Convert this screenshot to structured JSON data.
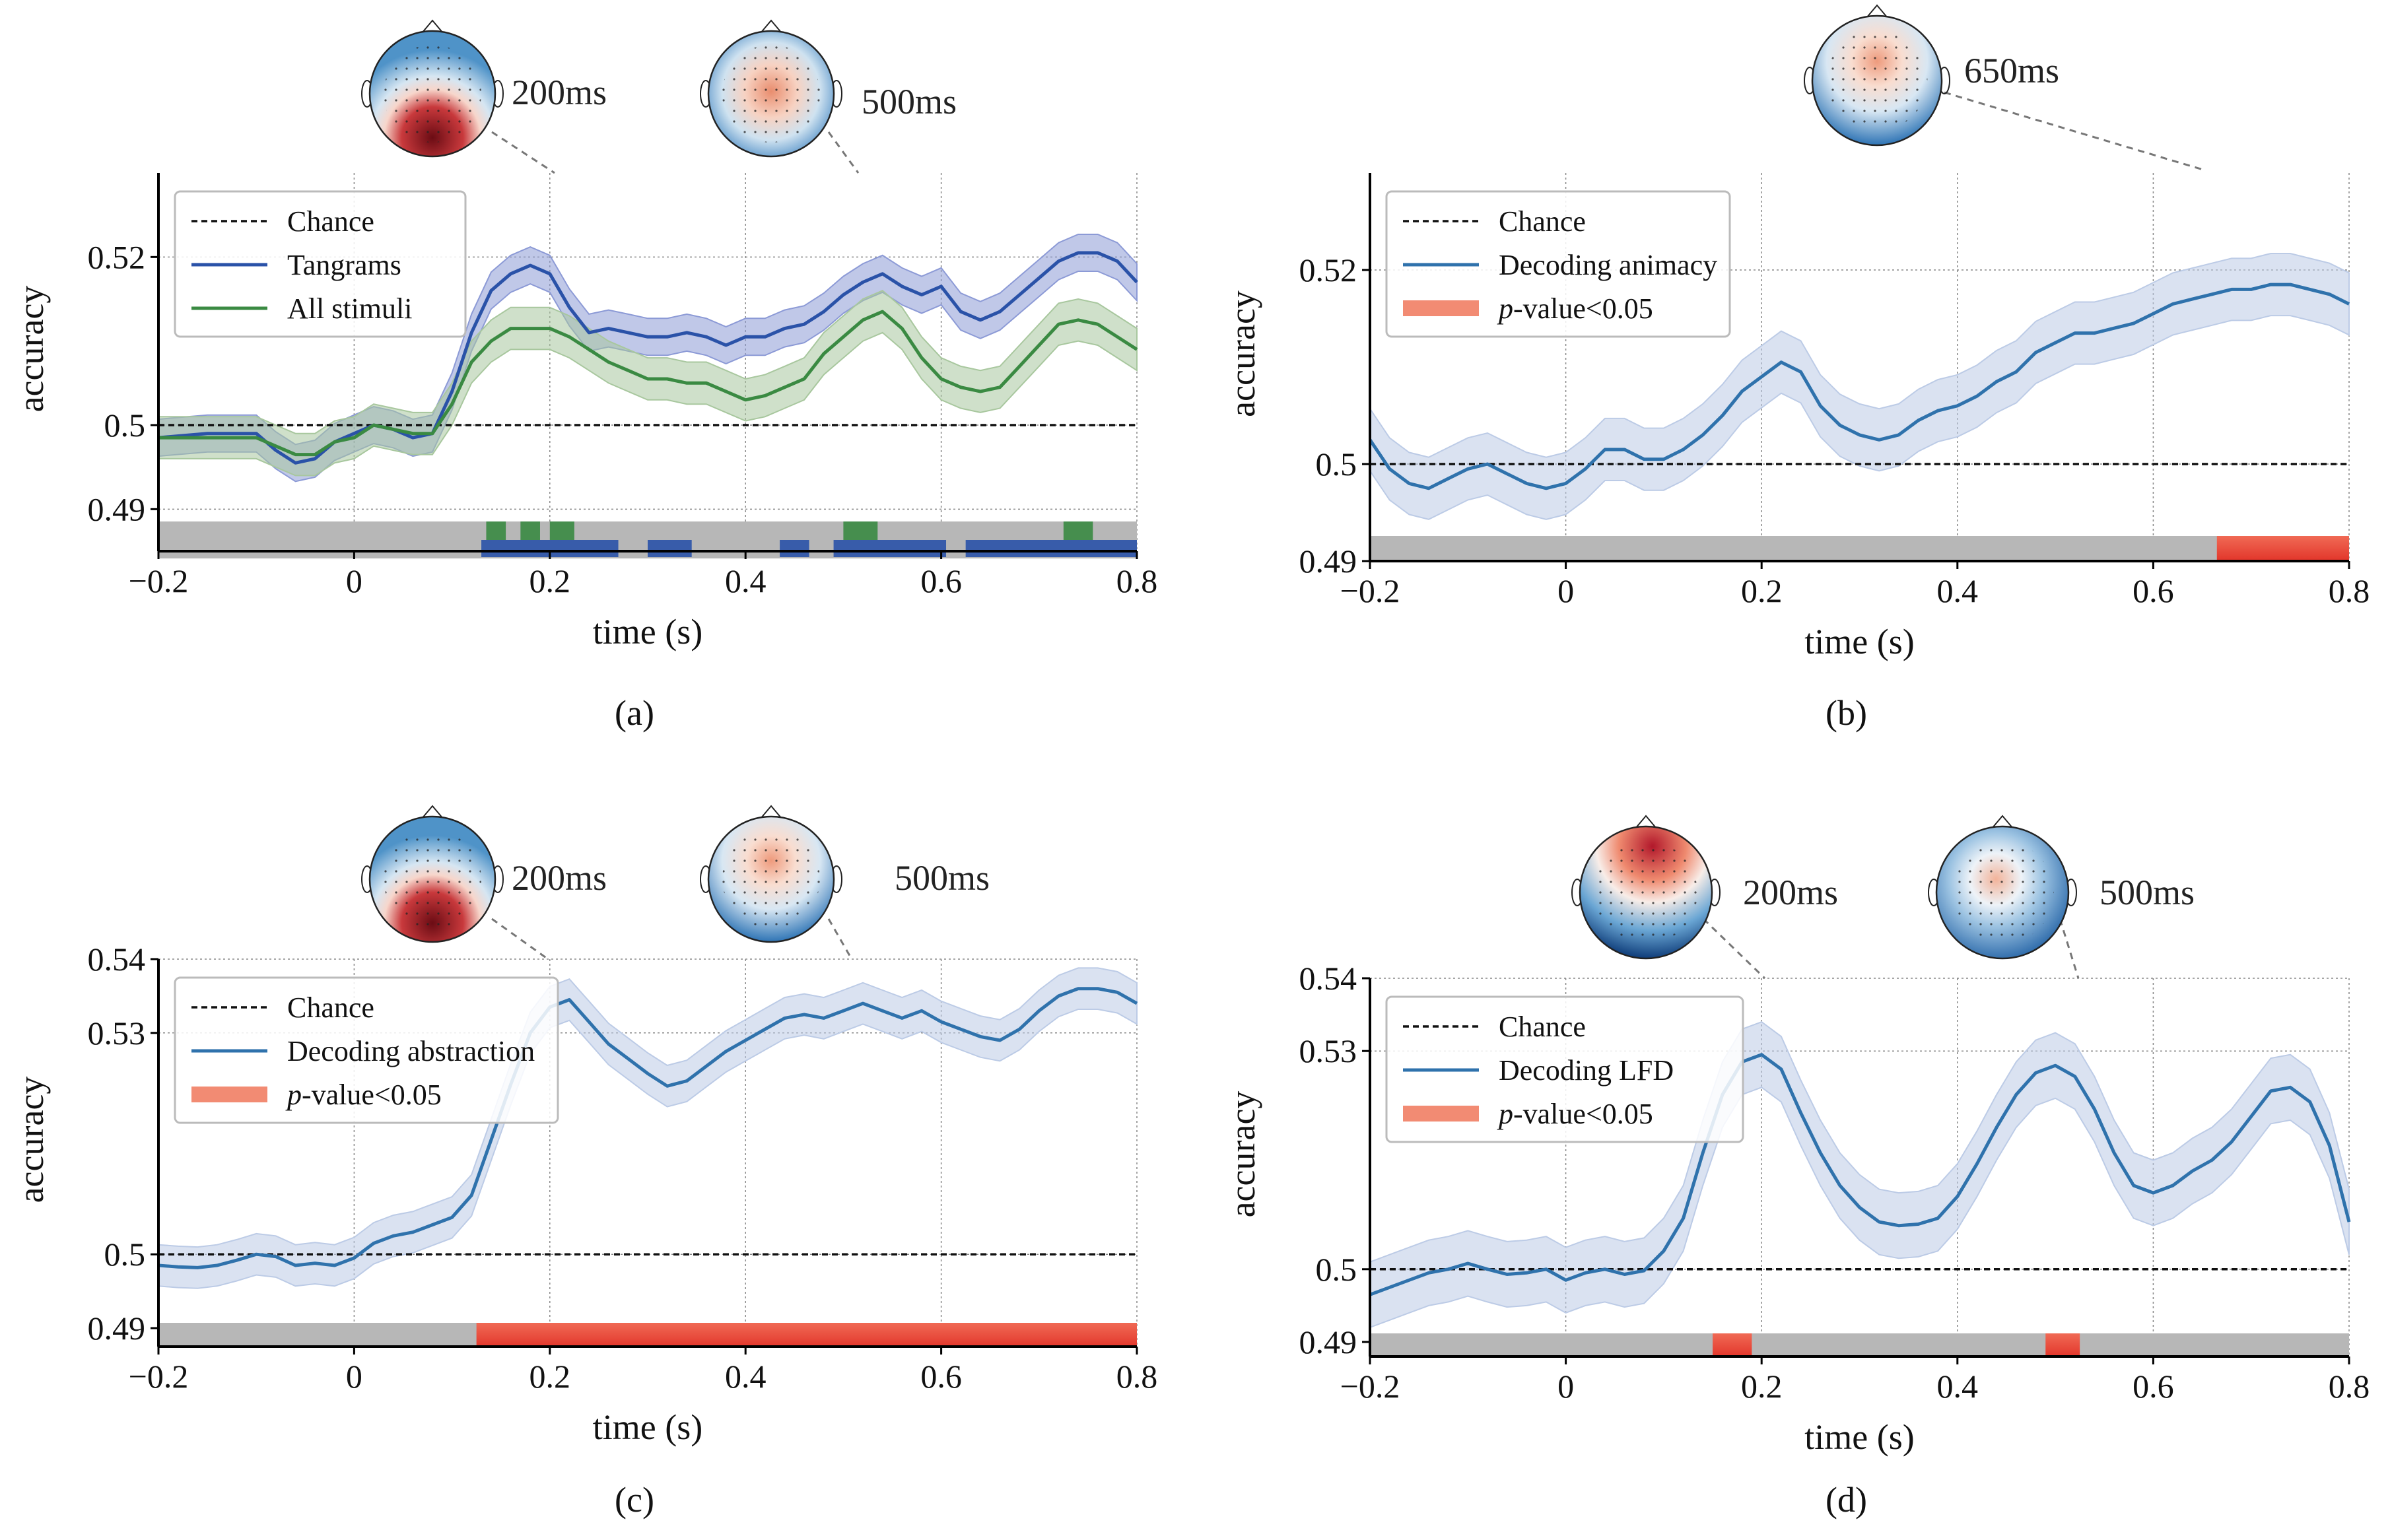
{
  "colors": {
    "tangrams": "#2a52a8",
    "tangrams_fill": "#8c9ad6",
    "allstim": "#3a8a42",
    "allstim_fill": "#a8c79e",
    "decode": "#2f72ac",
    "decode_fill": "#bccbe6",
    "sig": "#e84436",
    "sig_legend": "#f28b73",
    "grey_bar": "#b7b7b7",
    "chance": "#111111"
  },
  "chart_data": [
    {
      "panel": "a",
      "type": "line",
      "caption": "(a)",
      "xlabel": "time (s)",
      "ylabel": "accuracy",
      "xlim": [
        -0.2,
        0.8
      ],
      "xticks": [
        -0.2,
        0,
        0.2,
        0.4,
        0.6,
        0.8
      ],
      "xtick_labels": [
        "−0.2",
        "0",
        "0.2",
        "0.4",
        "0.6",
        "0.8"
      ],
      "ylim": [
        0.485,
        0.53
      ],
      "yticks": [
        0.49,
        0.5,
        0.52
      ],
      "ytick_labels": [
        "0.49",
        "0.5",
        "0.52"
      ],
      "legend": [
        "Chance",
        "Tangrams",
        "All stimuli"
      ],
      "topomaps": [
        {
          "label": "200ms",
          "time": 0.2,
          "pattern": "posterior"
        },
        {
          "label": "500ms",
          "time": 0.5,
          "pattern": "central"
        }
      ],
      "series": [
        {
          "name": "Tangrams",
          "color_key": "tangrams",
          "x": [
            -0.2,
            -0.15,
            -0.1,
            -0.08,
            -0.06,
            -0.04,
            -0.02,
            0,
            0.02,
            0.04,
            0.06,
            0.08,
            0.1,
            0.12,
            0.14,
            0.16,
            0.18,
            0.2,
            0.22,
            0.24,
            0.26,
            0.28,
            0.3,
            0.32,
            0.34,
            0.36,
            0.38,
            0.4,
            0.42,
            0.44,
            0.46,
            0.48,
            0.5,
            0.52,
            0.54,
            0.56,
            0.58,
            0.6,
            0.62,
            0.64,
            0.66,
            0.68,
            0.7,
            0.72,
            0.74,
            0.76,
            0.78,
            0.8
          ],
          "values": [
            0.4985,
            0.499,
            0.499,
            0.497,
            0.4955,
            0.496,
            0.498,
            0.499,
            0.5,
            0.4995,
            0.4985,
            0.499,
            0.504,
            0.511,
            0.516,
            0.518,
            0.519,
            0.518,
            0.514,
            0.511,
            0.5115,
            0.511,
            0.5105,
            0.5105,
            0.511,
            0.5105,
            0.5095,
            0.5105,
            0.5105,
            0.5115,
            0.512,
            0.5135,
            0.5155,
            0.517,
            0.518,
            0.5165,
            0.5155,
            0.5165,
            0.5135,
            0.5125,
            0.5135,
            0.5155,
            0.5175,
            0.5195,
            0.5205,
            0.5205,
            0.5195,
            0.517
          ],
          "band": 0.0022
        },
        {
          "name": "All stimuli",
          "color_key": "allstim",
          "x": [
            -0.2,
            -0.15,
            -0.1,
            -0.08,
            -0.06,
            -0.04,
            -0.02,
            0,
            0.02,
            0.04,
            0.06,
            0.08,
            0.1,
            0.12,
            0.14,
            0.16,
            0.18,
            0.2,
            0.22,
            0.24,
            0.26,
            0.28,
            0.3,
            0.32,
            0.34,
            0.36,
            0.38,
            0.4,
            0.42,
            0.44,
            0.46,
            0.48,
            0.5,
            0.52,
            0.54,
            0.56,
            0.58,
            0.6,
            0.62,
            0.64,
            0.66,
            0.68,
            0.7,
            0.72,
            0.74,
            0.76,
            0.78,
            0.8
          ],
          "values": [
            0.4985,
            0.4985,
            0.4985,
            0.4975,
            0.4965,
            0.4965,
            0.498,
            0.4985,
            0.5,
            0.4995,
            0.499,
            0.499,
            0.5025,
            0.5075,
            0.51,
            0.5115,
            0.5115,
            0.5115,
            0.5105,
            0.509,
            0.5075,
            0.5065,
            0.5055,
            0.5055,
            0.505,
            0.505,
            0.504,
            0.503,
            0.5035,
            0.5045,
            0.5055,
            0.5085,
            0.5105,
            0.5125,
            0.5135,
            0.5115,
            0.508,
            0.5055,
            0.5045,
            0.504,
            0.5045,
            0.507,
            0.5095,
            0.512,
            0.5125,
            0.512,
            0.5105,
            0.509
          ],
          "band": 0.0025
        }
      ],
      "sig_rows": [
        {
          "color_key": "allstim",
          "intervals": [
            [
              0.135,
              0.155
            ],
            [
              0.17,
              0.19
            ],
            [
              0.2,
              0.225
            ],
            [
              0.5,
              0.535
            ],
            [
              0.725,
              0.755
            ]
          ]
        },
        {
          "color_key": "tangrams",
          "intervals": [
            [
              0.13,
              0.27
            ],
            [
              0.3,
              0.345
            ],
            [
              0.435,
              0.465
            ],
            [
              0.49,
              0.605
            ],
            [
              0.625,
              0.8
            ]
          ]
        }
      ]
    },
    {
      "panel": "b",
      "type": "line",
      "caption": "(b)",
      "xlabel": "time (s)",
      "ylabel": "accuracy",
      "xlim": [
        -0.2,
        0.8
      ],
      "xticks": [
        -0.2,
        0,
        0.2,
        0.4,
        0.6,
        0.8
      ],
      "xtick_labels": [
        "−0.2",
        "0",
        "0.2",
        "0.4",
        "0.6",
        "0.8"
      ],
      "ylim": [
        0.49,
        0.53
      ],
      "yticks": [
        0.49,
        0.5,
        0.52
      ],
      "ytick_labels": [
        "0.49",
        "0.5",
        "0.52"
      ],
      "legend": [
        "Chance",
        "Decoding animacy",
        "p-value<0.05"
      ],
      "legend_pvalue": [
        "p",
        "-value<0.05"
      ],
      "topomaps": [
        {
          "label": "650ms",
          "time": 0.65,
          "pattern": "frontal"
        }
      ],
      "series": [
        {
          "name": "Decoding animacy",
          "color_key": "decode",
          "x": [
            -0.2,
            -0.18,
            -0.16,
            -0.14,
            -0.12,
            -0.1,
            -0.08,
            -0.06,
            -0.04,
            -0.02,
            0,
            0.02,
            0.04,
            0.06,
            0.08,
            0.1,
            0.12,
            0.14,
            0.16,
            0.18,
            0.2,
            0.22,
            0.24,
            0.26,
            0.28,
            0.3,
            0.32,
            0.34,
            0.36,
            0.38,
            0.4,
            0.42,
            0.44,
            0.46,
            0.48,
            0.5,
            0.52,
            0.54,
            0.56,
            0.58,
            0.6,
            0.62,
            0.64,
            0.66,
            0.68,
            0.7,
            0.72,
            0.74,
            0.76,
            0.78,
            0.8
          ],
          "values": [
            0.5025,
            0.4995,
            0.498,
            0.4975,
            0.4985,
            0.4995,
            0.5,
            0.499,
            0.498,
            0.4975,
            0.498,
            0.4995,
            0.5015,
            0.5015,
            0.5005,
            0.5005,
            0.5015,
            0.503,
            0.505,
            0.5075,
            0.509,
            0.5105,
            0.5095,
            0.506,
            0.504,
            0.503,
            0.5025,
            0.503,
            0.5045,
            0.5055,
            0.506,
            0.507,
            0.5085,
            0.5095,
            0.5115,
            0.5125,
            0.5135,
            0.5135,
            0.514,
            0.5145,
            0.5155,
            0.5165,
            0.517,
            0.5175,
            0.518,
            0.518,
            0.5185,
            0.5185,
            0.518,
            0.5175,
            0.5165
          ],
          "band": 0.0032
        }
      ],
      "sig_rows": [
        {
          "color_key": "sig",
          "intervals": [
            [
              0.665,
              0.8
            ]
          ]
        }
      ]
    },
    {
      "panel": "c",
      "type": "line",
      "caption": "(c)",
      "xlabel": "time (s)",
      "ylabel": "accuracy",
      "xlim": [
        -0.2,
        0.8
      ],
      "xticks": [
        -0.2,
        0,
        0.2,
        0.4,
        0.6,
        0.8
      ],
      "xtick_labels": [
        "−0.2",
        "0",
        "0.2",
        "0.4",
        "0.6",
        "0.8"
      ],
      "ylim": [
        0.4875,
        0.54
      ],
      "yticks": [
        0.49,
        0.5,
        0.53,
        0.54
      ],
      "ytick_labels": [
        "0.49",
        "0.5",
        "0.53",
        "0.54"
      ],
      "legend": [
        "Chance",
        "Decoding abstraction",
        "p-value<0.05"
      ],
      "legend_pvalue": [
        "p",
        "-value<0.05"
      ],
      "topomaps": [
        {
          "label": "200ms",
          "time": 0.2,
          "pattern": "posterior"
        },
        {
          "label": "500ms",
          "time": 0.5,
          "pattern": "frontal"
        }
      ],
      "series": [
        {
          "name": "Decoding abstraction",
          "color_key": "decode",
          "x": [
            -0.2,
            -0.18,
            -0.16,
            -0.14,
            -0.12,
            -0.1,
            -0.08,
            -0.06,
            -0.04,
            -0.02,
            0,
            0.02,
            0.04,
            0.06,
            0.08,
            0.1,
            0.12,
            0.14,
            0.16,
            0.18,
            0.2,
            0.22,
            0.24,
            0.26,
            0.28,
            0.3,
            0.32,
            0.34,
            0.36,
            0.38,
            0.4,
            0.42,
            0.44,
            0.46,
            0.48,
            0.5,
            0.52,
            0.54,
            0.56,
            0.58,
            0.6,
            0.62,
            0.64,
            0.66,
            0.68,
            0.7,
            0.72,
            0.74,
            0.76,
            0.78,
            0.8
          ],
          "values": [
            0.4985,
            0.4983,
            0.4982,
            0.4985,
            0.4992,
            0.5,
            0.4997,
            0.4985,
            0.4988,
            0.4985,
            0.4995,
            0.5015,
            0.5025,
            0.503,
            0.504,
            0.505,
            0.508,
            0.5155,
            0.523,
            0.53,
            0.5335,
            0.5345,
            0.5315,
            0.5285,
            0.5265,
            0.5245,
            0.5228,
            0.5235,
            0.5255,
            0.5275,
            0.529,
            0.5305,
            0.532,
            0.5325,
            0.532,
            0.533,
            0.534,
            0.533,
            0.532,
            0.533,
            0.5315,
            0.5305,
            0.5295,
            0.529,
            0.5305,
            0.533,
            0.535,
            0.536,
            0.536,
            0.5355,
            0.534
          ],
          "band": 0.0028
        }
      ],
      "sig_rows": [
        {
          "color_key": "sig",
          "intervals": [
            [
              0.125,
              0.8
            ]
          ]
        }
      ]
    },
    {
      "panel": "d",
      "type": "line",
      "caption": "(d)",
      "xlabel": "time (s)",
      "ylabel": "accuracy",
      "xlim": [
        -0.2,
        0.8
      ],
      "xticks": [
        -0.2,
        0,
        0.2,
        0.4,
        0.6,
        0.8
      ],
      "xtick_labels": [
        "−0.2",
        "0",
        "0.2",
        "0.4",
        "0.6",
        "0.8"
      ],
      "ylim": [
        0.488,
        0.54
      ],
      "yticks": [
        0.49,
        0.5,
        0.53,
        0.54
      ],
      "ytick_labels": [
        "0.49",
        "0.5",
        "0.53",
        "0.54"
      ],
      "legend": [
        "Chance",
        "Decoding LFD",
        "p-value<0.05"
      ],
      "legend_pvalue": [
        "p",
        "-value<0.05"
      ],
      "topomaps": [
        {
          "label": "200ms",
          "time": 0.2,
          "pattern": "frontal-red"
        },
        {
          "label": "500ms",
          "time": 0.5,
          "pattern": "mixed"
        }
      ],
      "series": [
        {
          "name": "Decoding LFD",
          "color_key": "decode",
          "x": [
            -0.2,
            -0.18,
            -0.16,
            -0.14,
            -0.12,
            -0.1,
            -0.08,
            -0.06,
            -0.04,
            -0.02,
            0,
            0.02,
            0.04,
            0.06,
            0.08,
            0.1,
            0.12,
            0.14,
            0.16,
            0.18,
            0.2,
            0.22,
            0.24,
            0.26,
            0.28,
            0.3,
            0.32,
            0.34,
            0.36,
            0.38,
            0.4,
            0.42,
            0.44,
            0.46,
            0.48,
            0.5,
            0.52,
            0.54,
            0.56,
            0.58,
            0.6,
            0.62,
            0.64,
            0.66,
            0.68,
            0.7,
            0.72,
            0.74,
            0.76,
            0.78,
            0.8
          ],
          "values": [
            0.4965,
            0.4975,
            0.4985,
            0.4995,
            0.5,
            0.5008,
            0.5,
            0.4993,
            0.4995,
            0.5,
            0.4985,
            0.4995,
            0.5,
            0.4993,
            0.4998,
            0.5025,
            0.507,
            0.516,
            0.524,
            0.5285,
            0.5295,
            0.5275,
            0.5215,
            0.516,
            0.5115,
            0.5085,
            0.5065,
            0.506,
            0.5062,
            0.507,
            0.51,
            0.5145,
            0.5195,
            0.524,
            0.527,
            0.528,
            0.5265,
            0.522,
            0.516,
            0.5115,
            0.5105,
            0.5115,
            0.5135,
            0.515,
            0.5175,
            0.521,
            0.5245,
            0.525,
            0.523,
            0.517,
            0.5065
          ],
          "band": 0.0045
        }
      ],
      "sig_rows": [
        {
          "color_key": "sig",
          "intervals": [
            [
              0.15,
              0.19
            ],
            [
              0.49,
              0.525
            ]
          ]
        }
      ]
    }
  ]
}
